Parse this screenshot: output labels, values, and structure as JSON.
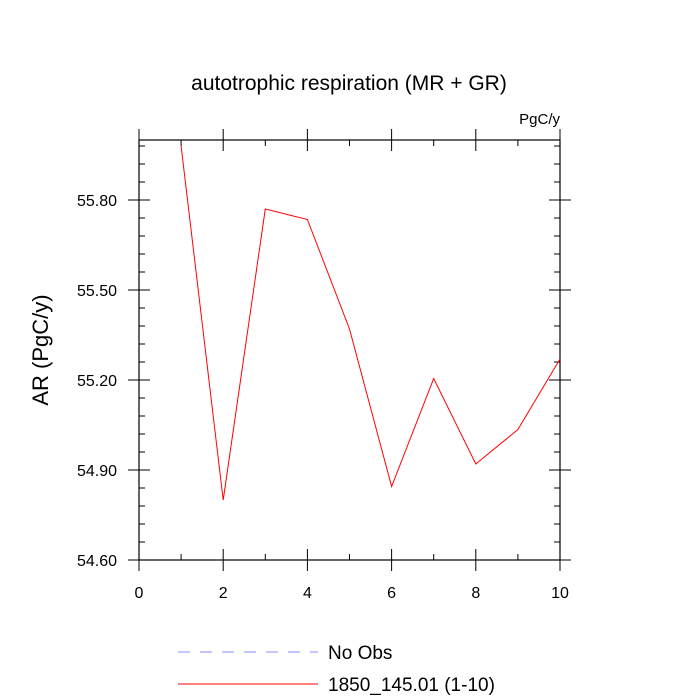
{
  "chart_data": {
    "type": "line",
    "title": "autotrophic respiration (MR + GR)",
    "units": "PgC/y",
    "xlabel": "",
    "ylabel": "AR  (PgC/y)",
    "xlim": [
      0,
      10
    ],
    "ylim": [
      54.6,
      56.0
    ],
    "x_ticks": [
      0,
      2,
      4,
      6,
      8,
      10
    ],
    "x_tick_labels": [
      "0",
      "2",
      "4",
      "6",
      "8",
      "10"
    ],
    "y_ticks": [
      54.6,
      54.9,
      55.2,
      55.5,
      55.8
    ],
    "y_tick_labels": [
      "54.60",
      "54.90",
      "55.20",
      "55.50",
      "55.80"
    ],
    "grid": false,
    "legend_position": "bottom",
    "legend": [
      {
        "label": "No Obs",
        "color": "#8888ff",
        "style": "dashed"
      },
      {
        "label": "1850_145.01 (1-10)",
        "color": "#ff0000",
        "style": "solid"
      }
    ],
    "series": [
      {
        "name": "1850_145.01 (1-10)",
        "color": "#ff0000",
        "x": [
          1,
          2,
          3,
          4,
          5,
          6,
          7,
          8,
          9,
          10
        ],
        "y": [
          55.98,
          54.8,
          55.77,
          55.735,
          55.37,
          54.845,
          55.205,
          54.92,
          55.035,
          55.27
        ]
      }
    ]
  }
}
